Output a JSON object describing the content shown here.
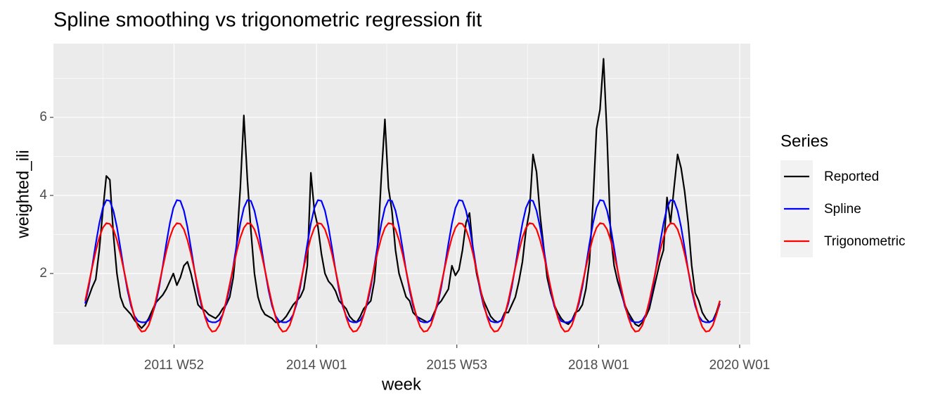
{
  "chart_data": {
    "type": "line",
    "title": "Spline smoothing vs trigonometric regression fit",
    "x_label": "week",
    "y_label": "weighted_ili",
    "legend_title": "Series",
    "legend_position": "right",
    "grid": true,
    "xlim": [
      2010.27,
      2020.15
    ],
    "ylim": [
      0.18,
      7.89
    ],
    "xticks": [
      {
        "value": 2011.98,
        "label": "2011 W52"
      },
      {
        "value": 2014.0,
        "label": "2014 W01"
      },
      {
        "value": 2015.99,
        "label": "2015 W53"
      },
      {
        "value": 2018.0,
        "label": "2018 W01"
      },
      {
        "value": 2020.0,
        "label": "2020 W01"
      }
    ],
    "yticks": [
      2,
      4,
      6
    ],
    "x": [
      2010.72,
      2010.77,
      2010.82,
      2010.87,
      2010.92,
      2010.97,
      2011.02,
      2011.07,
      2011.12,
      2011.17,
      2011.22,
      2011.27,
      2011.32,
      2011.37,
      2011.42,
      2011.47,
      2011.52,
      2011.57,
      2011.62,
      2011.67,
      2011.72,
      2011.77,
      2011.82,
      2011.87,
      2011.92,
      2011.97,
      2012.02,
      2012.07,
      2012.12,
      2012.17,
      2012.22,
      2012.27,
      2012.32,
      2012.37,
      2012.42,
      2012.47,
      2012.52,
      2012.57,
      2012.62,
      2012.67,
      2012.72,
      2012.77,
      2012.82,
      2012.87,
      2012.92,
      2012.97,
      2013.02,
      2013.07,
      2013.12,
      2013.17,
      2013.22,
      2013.27,
      2013.32,
      2013.37,
      2013.42,
      2013.47,
      2013.52,
      2013.57,
      2013.62,
      2013.67,
      2013.72,
      2013.77,
      2013.82,
      2013.87,
      2013.92,
      2013.97,
      2014.02,
      2014.07,
      2014.12,
      2014.17,
      2014.22,
      2014.27,
      2014.32,
      2014.37,
      2014.42,
      2014.47,
      2014.52,
      2014.57,
      2014.62,
      2014.67,
      2014.72,
      2014.77,
      2014.82,
      2014.87,
      2014.92,
      2014.97,
      2015.02,
      2015.07,
      2015.12,
      2015.17,
      2015.22,
      2015.27,
      2015.32,
      2015.37,
      2015.42,
      2015.47,
      2015.52,
      2015.57,
      2015.62,
      2015.67,
      2015.72,
      2015.77,
      2015.82,
      2015.87,
      2015.92,
      2015.97,
      2016.02,
      2016.07,
      2016.12,
      2016.17,
      2016.22,
      2016.27,
      2016.32,
      2016.37,
      2016.42,
      2016.47,
      2016.52,
      2016.57,
      2016.62,
      2016.67,
      2016.72,
      2016.77,
      2016.82,
      2016.87,
      2016.92,
      2016.97,
      2017.02,
      2017.07,
      2017.12,
      2017.17,
      2017.22,
      2017.27,
      2017.32,
      2017.37,
      2017.42,
      2017.47,
      2017.52,
      2017.57,
      2017.62,
      2017.67,
      2017.72,
      2017.77,
      2017.82,
      2017.87,
      2017.92,
      2017.97,
      2018.02,
      2018.07,
      2018.12,
      2018.17,
      2018.22,
      2018.27,
      2018.32,
      2018.37,
      2018.42,
      2018.47,
      2018.52,
      2018.57,
      2018.62,
      2018.67,
      2018.72,
      2018.77,
      2018.82,
      2018.87,
      2018.92,
      2018.97,
      2019.02,
      2019.07,
      2019.12,
      2019.17,
      2019.22,
      2019.27,
      2019.32,
      2019.37,
      2019.42,
      2019.47,
      2019.52,
      2019.57,
      2019.62,
      2019.67,
      2019.72
    ],
    "series": [
      {
        "name": "Reported",
        "color": "#000000",
        "values": [
          1.15,
          1.4,
          1.65,
          1.85,
          2.6,
          3.6,
          4.5,
          4.4,
          3.0,
          2.0,
          1.4,
          1.15,
          1.05,
          0.95,
          0.8,
          0.7,
          0.6,
          0.7,
          0.85,
          1.05,
          1.25,
          1.35,
          1.45,
          1.6,
          1.8,
          2.0,
          1.7,
          1.9,
          2.2,
          2.3,
          2.0,
          1.6,
          1.2,
          1.1,
          1.05,
          0.95,
          0.9,
          0.85,
          0.95,
          1.1,
          1.2,
          1.4,
          1.9,
          2.8,
          4.2,
          6.05,
          4.4,
          3.1,
          2.0,
          1.4,
          1.1,
          0.95,
          0.9,
          0.85,
          0.75,
          0.75,
          0.8,
          0.9,
          1.05,
          1.2,
          1.3,
          1.4,
          1.6,
          2.2,
          4.58,
          3.6,
          3.2,
          2.5,
          2.0,
          1.8,
          1.7,
          1.55,
          1.3,
          1.2,
          1.1,
          0.9,
          0.8,
          0.75,
          0.9,
          1.1,
          1.2,
          1.3,
          1.8,
          2.8,
          4.5,
          5.95,
          4.2,
          3.6,
          2.6,
          2.0,
          1.7,
          1.4,
          1.3,
          1.0,
          0.9,
          0.85,
          0.8,
          0.75,
          0.8,
          1.0,
          1.2,
          1.3,
          1.45,
          1.6,
          2.2,
          1.95,
          2.1,
          2.6,
          3.3,
          3.55,
          2.6,
          2.0,
          1.6,
          1.3,
          1.1,
          0.9,
          0.8,
          0.75,
          0.8,
          1.0,
          1.0,
          1.2,
          1.4,
          1.8,
          2.3,
          3.1,
          3.6,
          5.05,
          4.6,
          3.5,
          2.7,
          1.9,
          1.5,
          1.2,
          1.0,
          0.85,
          0.75,
          0.7,
          0.8,
          1.0,
          1.05,
          1.2,
          1.6,
          2.3,
          3.8,
          5.7,
          6.2,
          7.5,
          5.5,
          3.0,
          2.2,
          1.8,
          1.5,
          1.2,
          1.0,
          0.85,
          0.7,
          0.65,
          0.75,
          0.9,
          1.1,
          1.5,
          1.9,
          2.3,
          2.6,
          3.95,
          3.3,
          4.2,
          5.05,
          4.7,
          4.1,
          3.3,
          2.2,
          1.5,
          1.3,
          1.0,
          0.85,
          0.75,
          0.8,
          1.0,
          1.3
        ]
      },
      {
        "name": "Spline",
        "color": "#0000ff",
        "values": [
          1.23,
          1.66,
          2.19,
          2.76,
          3.28,
          3.68,
          3.88,
          3.86,
          3.61,
          3.19,
          2.65,
          2.08,
          1.57,
          1.17,
          0.91,
          0.78,
          0.75,
          0.75,
          0.8,
          0.95,
          1.23,
          1.66,
          2.19,
          2.76,
          3.28,
          3.68,
          3.88,
          3.86,
          3.61,
          3.19,
          2.65,
          2.08,
          1.57,
          1.17,
          0.91,
          0.78,
          0.75,
          0.75,
          0.8,
          0.95,
          1.23,
          1.66,
          2.19,
          2.76,
          3.28,
          3.68,
          3.88,
          3.86,
          3.61,
          3.19,
          2.65,
          2.08,
          1.57,
          1.17,
          0.91,
          0.78,
          0.75,
          0.75,
          0.8,
          0.95,
          1.23,
          1.66,
          2.19,
          2.76,
          3.28,
          3.68,
          3.88,
          3.86,
          3.61,
          3.19,
          2.65,
          2.08,
          1.57,
          1.17,
          0.91,
          0.78,
          0.75,
          0.75,
          0.8,
          0.95,
          1.23,
          1.66,
          2.19,
          2.76,
          3.28,
          3.68,
          3.88,
          3.86,
          3.61,
          3.19,
          2.65,
          2.08,
          1.57,
          1.17,
          0.91,
          0.78,
          0.75,
          0.75,
          0.8,
          0.95,
          1.23,
          1.66,
          2.19,
          2.76,
          3.28,
          3.68,
          3.88,
          3.86,
          3.61,
          3.19,
          2.65,
          2.08,
          1.57,
          1.17,
          0.91,
          0.78,
          0.75,
          0.75,
          0.8,
          0.95,
          1.23,
          1.66,
          2.19,
          2.76,
          3.28,
          3.68,
          3.88,
          3.86,
          3.61,
          3.19,
          2.65,
          2.08,
          1.57,
          1.17,
          0.91,
          0.78,
          0.75,
          0.75,
          0.8,
          0.95,
          1.23,
          1.66,
          2.19,
          2.76,
          3.28,
          3.68,
          3.88,
          3.86,
          3.61,
          3.19,
          2.65,
          2.08,
          1.57,
          1.17,
          0.91,
          0.78,
          0.75,
          0.75,
          0.8,
          0.95,
          1.23,
          1.66,
          2.19,
          2.76,
          3.28,
          3.68,
          3.88,
          3.86,
          3.61,
          3.19,
          2.65,
          2.08,
          1.57,
          1.17,
          0.91,
          0.78,
          0.75,
          0.75,
          0.8,
          0.95,
          1.23
        ]
      },
      {
        "name": "Trigonometric",
        "color": "#ff0000",
        "values": [
          1.3,
          1.73,
          2.16,
          2.57,
          2.92,
          3.17,
          3.29,
          3.27,
          3.13,
          2.86,
          2.5,
          2.08,
          1.64,
          1.23,
          0.88,
          0.63,
          0.51,
          0.53,
          0.67,
          0.94,
          1.3,
          1.73,
          2.16,
          2.57,
          2.92,
          3.17,
          3.29,
          3.27,
          3.13,
          2.86,
          2.5,
          2.08,
          1.64,
          1.23,
          0.88,
          0.63,
          0.51,
          0.53,
          0.67,
          0.94,
          1.3,
          1.73,
          2.16,
          2.57,
          2.92,
          3.17,
          3.29,
          3.27,
          3.13,
          2.86,
          2.5,
          2.08,
          1.64,
          1.23,
          0.88,
          0.63,
          0.51,
          0.53,
          0.67,
          0.94,
          1.3,
          1.73,
          2.16,
          2.57,
          2.92,
          3.17,
          3.29,
          3.27,
          3.13,
          2.86,
          2.5,
          2.08,
          1.64,
          1.23,
          0.88,
          0.63,
          0.51,
          0.53,
          0.67,
          0.94,
          1.3,
          1.73,
          2.16,
          2.57,
          2.92,
          3.17,
          3.29,
          3.27,
          3.13,
          2.86,
          2.5,
          2.08,
          1.64,
          1.23,
          0.88,
          0.63,
          0.51,
          0.53,
          0.67,
          0.94,
          1.3,
          1.73,
          2.16,
          2.57,
          2.92,
          3.17,
          3.29,
          3.27,
          3.13,
          2.86,
          2.5,
          2.08,
          1.64,
          1.23,
          0.88,
          0.63,
          0.51,
          0.53,
          0.67,
          0.94,
          1.3,
          1.73,
          2.16,
          2.57,
          2.92,
          3.17,
          3.29,
          3.27,
          3.13,
          2.86,
          2.5,
          2.08,
          1.64,
          1.23,
          0.88,
          0.63,
          0.51,
          0.53,
          0.67,
          0.94,
          1.3,
          1.73,
          2.16,
          2.57,
          2.92,
          3.17,
          3.29,
          3.27,
          3.13,
          2.86,
          2.5,
          2.08,
          1.64,
          1.23,
          0.88,
          0.63,
          0.51,
          0.53,
          0.67,
          0.94,
          1.3,
          1.73,
          2.16,
          2.57,
          2.92,
          3.17,
          3.29,
          3.27,
          3.13,
          2.86,
          2.5,
          2.08,
          1.64,
          1.23,
          0.88,
          0.63,
          0.51,
          0.53,
          0.67,
          0.94,
          1.3
        ]
      }
    ]
  }
}
